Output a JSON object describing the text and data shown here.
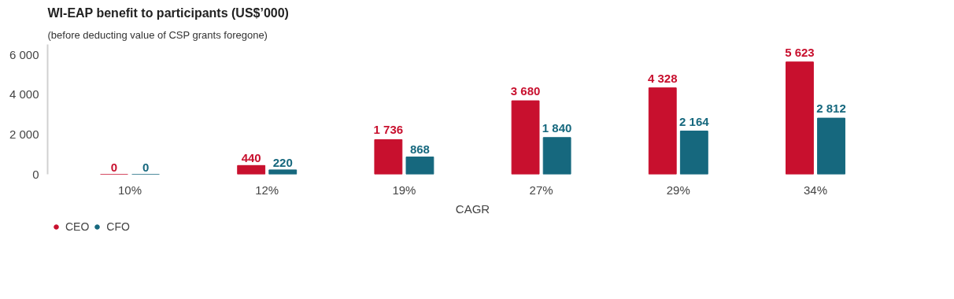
{
  "chart_data": {
    "type": "bar",
    "title": "WI-EAP benefit to participants (US$’000)",
    "subtitle": "(before deducting value of CSP grants foregone)",
    "xlabel": "CAGR",
    "categories": [
      "10%",
      "12%",
      "19%",
      "27%",
      "29%",
      "34%"
    ],
    "series": [
      {
        "name": "CEO",
        "color": "#c8102e",
        "values": [
          0,
          440,
          1736,
          3680,
          4328,
          5623
        ],
        "value_labels": [
          "0",
          "440",
          "1 736",
          "3 680",
          "4 328",
          "5 623"
        ]
      },
      {
        "name": "CFO",
        "color": "#16687e",
        "values": [
          0,
          220,
          868,
          1840,
          2164,
          2812
        ],
        "value_labels": [
          "0",
          "220",
          "868",
          "1 840",
          "2 164",
          "2 812"
        ]
      }
    ],
    "ylim": [
      0,
      6500
    ],
    "yticks": [
      0,
      {
        "value": 2000,
        "label": "2 000"
      },
      {
        "value": 4000,
        "label": "4 000"
      },
      {
        "value": 6000,
        "label": "6 000"
      }
    ],
    "grid": false,
    "legend": "bottom left"
  }
}
